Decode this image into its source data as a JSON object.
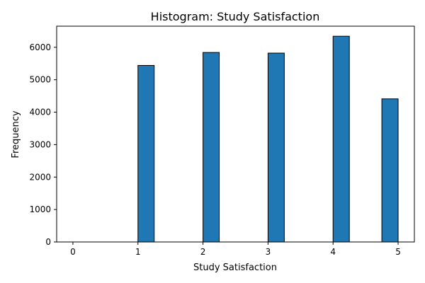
{
  "chart_data": {
    "type": "bar",
    "title": "Histogram: Study Satisfaction",
    "xlabel": "Study Satisfaction",
    "ylabel": "Frequency",
    "xlim": [
      -0.25,
      5.25
    ],
    "ylim": [
      0,
      6650
    ],
    "xticks": [
      0,
      1,
      2,
      3,
      4,
      5
    ],
    "yticks": [
      0,
      1000,
      2000,
      3000,
      4000,
      5000,
      6000
    ],
    "grid": false,
    "bin_width": 0.25,
    "bins": [
      {
        "x0": 0.0,
        "x1": 0.25,
        "value": 0
      },
      {
        "x0": 0.25,
        "x1": 0.5,
        "value": 0
      },
      {
        "x0": 0.5,
        "x1": 0.75,
        "value": 0
      },
      {
        "x0": 0.75,
        "x1": 1.0,
        "value": 0
      },
      {
        "x0": 1.0,
        "x1": 1.25,
        "value": 5440
      },
      {
        "x0": 1.25,
        "x1": 1.5,
        "value": 0
      },
      {
        "x0": 1.5,
        "x1": 1.75,
        "value": 0
      },
      {
        "x0": 1.75,
        "x1": 2.0,
        "value": 0
      },
      {
        "x0": 2.0,
        "x1": 2.25,
        "value": 5840
      },
      {
        "x0": 2.25,
        "x1": 2.5,
        "value": 0
      },
      {
        "x0": 2.5,
        "x1": 2.75,
        "value": 0
      },
      {
        "x0": 2.75,
        "x1": 3.0,
        "value": 0
      },
      {
        "x0": 3.0,
        "x1": 3.25,
        "value": 5820
      },
      {
        "x0": 3.25,
        "x1": 3.5,
        "value": 0
      },
      {
        "x0": 3.5,
        "x1": 3.75,
        "value": 0
      },
      {
        "x0": 3.75,
        "x1": 4.0,
        "value": 0
      },
      {
        "x0": 4.0,
        "x1": 4.25,
        "value": 6340
      },
      {
        "x0": 4.25,
        "x1": 4.5,
        "value": 0
      },
      {
        "x0": 4.5,
        "x1": 4.75,
        "value": 0
      },
      {
        "x0": 4.75,
        "x1": 5.0,
        "value": 4410
      }
    ],
    "colors": {
      "bar": "#1f77b4",
      "edge": "#000000"
    }
  }
}
